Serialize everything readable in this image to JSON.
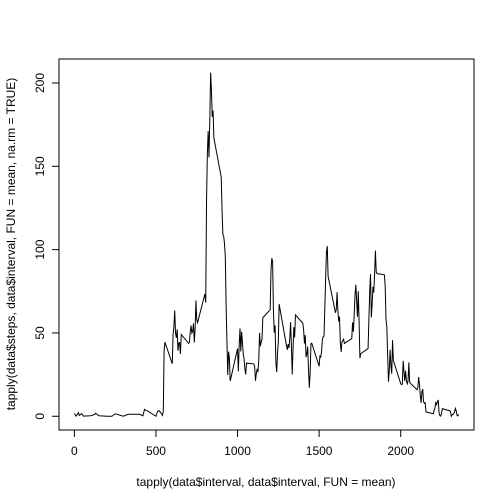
{
  "chart_data": {
    "type": "line",
    "xlabel": "tapply(data$interval, data$interval, FUN = mean)",
    "ylabel": "tapply(data$steps, data$interval, FUN = mean, na.rm = TRUE)",
    "color": "#000000",
    "xlim": [
      -94.2,
      2449.2
    ],
    "ylim": [
      -8.25,
      214.4
    ],
    "xticks": [
      0,
      500,
      1000,
      1500,
      2000
    ],
    "yticks": [
      0,
      50,
      100,
      150,
      200
    ],
    "x": [
      0,
      10,
      25,
      30,
      45,
      55,
      100,
      125,
      130,
      150,
      200,
      230,
      250,
      300,
      330,
      400,
      420,
      430,
      440,
      450,
      500,
      510,
      520,
      530,
      540,
      545,
      550,
      555,
      600,
      605,
      610,
      615,
      620,
      625,
      630,
      635,
      640,
      645,
      650,
      655,
      700,
      705,
      710,
      715,
      720,
      725,
      730,
      735,
      740,
      745,
      750,
      755,
      800,
      805,
      810,
      815,
      820,
      825,
      830,
      835,
      840,
      845,
      850,
      855,
      900,
      905,
      910,
      915,
      920,
      925,
      930,
      935,
      940,
      945,
      950,
      955,
      1000,
      1005,
      1010,
      1015,
      1020,
      1025,
      1030,
      1035,
      1040,
      1045,
      1050,
      1055,
      1100,
      1105,
      1110,
      1115,
      1120,
      1125,
      1130,
      1135,
      1140,
      1145,
      1150,
      1155,
      1200,
      1205,
      1210,
      1215,
      1220,
      1225,
      1230,
      1235,
      1240,
      1245,
      1250,
      1255,
      1300,
      1305,
      1310,
      1315,
      1320,
      1325,
      1330,
      1335,
      1340,
      1345,
      1350,
      1355,
      1400,
      1405,
      1410,
      1415,
      1420,
      1425,
      1430,
      1435,
      1440,
      1445,
      1450,
      1455,
      1500,
      1505,
      1510,
      1515,
      1520,
      1525,
      1530,
      1535,
      1540,
      1545,
      1550,
      1555,
      1600,
      1605,
      1610,
      1615,
      1620,
      1625,
      1630,
      1635,
      1640,
      1645,
      1650,
      1655,
      1700,
      1705,
      1710,
      1715,
      1720,
      1725,
      1730,
      1735,
      1740,
      1745,
      1750,
      1755,
      1800,
      1805,
      1810,
      1815,
      1820,
      1825,
      1830,
      1835,
      1840,
      1845,
      1850,
      1855,
      1900,
      1905,
      1910,
      1915,
      1920,
      1925,
      1930,
      1935,
      1940,
      1945,
      1950,
      1955,
      2000,
      2005,
      2010,
      2015,
      2020,
      2025,
      2030,
      2035,
      2040,
      2045,
      2050,
      2055,
      2100,
      2105,
      2110,
      2115,
      2120,
      2125,
      2130,
      2135,
      2140,
      2145,
      2150,
      2155,
      2200,
      2205,
      2210,
      2215,
      2220,
      2225,
      2230,
      2235,
      2240,
      2245,
      2250,
      2255,
      2300,
      2305,
      2310,
      2315,
      2320,
      2325,
      2330,
      2335,
      2340,
      2345,
      2350,
      2355
    ],
    "values": [
      1.7,
      0.1,
      2.1,
      0.5,
      1.5,
      0.1,
      0.3,
      1.1,
      1.8,
      0.3,
      0,
      0,
      1.5,
      0,
      1.2,
      1.2,
      0.3,
      4.1,
      3.5,
      3.1,
      0,
      3,
      3.3,
      2.1,
      0.5,
      3.2,
      39.5,
      44.5,
      31.5,
      49.3,
      53.8,
      63.5,
      50,
      47.1,
      52.2,
      39.3,
      44,
      44.2,
      37.4,
      49,
      43.8,
      44.4,
      50.5,
      54.5,
      49.9,
      51,
      55.7,
      44.3,
      52.3,
      69.5,
      57.8,
      56.2,
      73.4,
      68.2,
      129.4,
      157.5,
      171.2,
      155.4,
      177.3,
      206.2,
      195.9,
      179.6,
      183.4,
      167,
      143.5,
      124,
      109.1,
      108.1,
      103.7,
      96,
      66.2,
      45.2,
      24.8,
      38.8,
      35,
      21.1,
      40.6,
      27,
      42.4,
      52.7,
      38.9,
      50.8,
      44.3,
      37.4,
      34.7,
      28.3,
      25.1,
      31.9,
      31.4,
      29.7,
      21.3,
      25.5,
      28.4,
      26.5,
      33.4,
      50,
      42,
      44.6,
      46,
      59.2,
      63.9,
      87.7,
      94.8,
      92.8,
      63.4,
      50.2,
      54.5,
      32.4,
      26.5,
      37.7,
      45.1,
      67.3,
      42.3,
      39.9,
      43.3,
      41,
      46.2,
      56.4,
      42.8,
      25.1,
      40,
      53.5,
      47.3,
      60.8,
      55.8,
      52,
      43.6,
      48.7,
      35.5,
      37.5,
      41.8,
      27.5,
      17.1,
      26.1,
      43.6,
      43.8,
      30,
      36.1,
      35.5,
      38.8,
      46,
      47.8,
      48.1,
      65.3,
      82.9,
      98.7,
      102.1,
      84,
      62.1,
      64.1,
      74.5,
      63.2,
      56.9,
      59.8,
      43.9,
      38.6,
      44.7,
      45.5,
      46.2,
      43.7,
      46.6,
      56.3,
      50.7,
      61.2,
      72.7,
      78.9,
      68.9,
      59.7,
      75.1,
      56.5,
      34.8,
      37.5,
      40.7,
      58,
      74.7,
      85.3,
      59.3,
      67.8,
      77.7,
      74.2,
      85.3,
      99.5,
      86.6,
      85.6,
      84.9,
      77.8,
      58,
      53.4,
      36.3,
      20.7,
      27.4,
      40,
      30.2,
      25.5,
      45.7,
      33.5,
      19.6,
      19,
      19.3,
      33.3,
      26.8,
      21.2,
      27.3,
      21.3,
      19.5,
      21.3,
      32.3,
      20.2,
      15.9,
      17.2,
      23.5,
      19.2,
      12.5,
      8,
      14.7,
      16.3,
      8.7,
      7.8,
      8.1,
      2.6,
      1.5,
      3.7,
      4.8,
      8.5,
      7.1,
      8.7,
      9.8,
      2.2,
      0.3,
      0.1,
      1.6,
      4.6,
      3.3,
      2.8,
      0,
      0.8,
      1,
      1.6,
      2.6,
      4.7,
      3.3,
      0.6,
      0.2,
      1.1
    ]
  }
}
